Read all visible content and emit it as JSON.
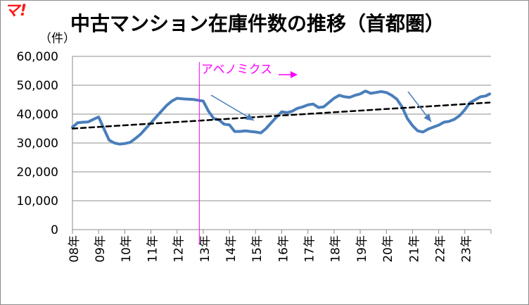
{
  "logo": {
    "text": "マ!",
    "color": "#ff1a1a"
  },
  "chart_data": {
    "type": "line",
    "title": "中古マンション在庫件数の推移（首都圏）",
    "ylabel": "（件）",
    "xlabel": "",
    "ylim": [
      0,
      60000
    ],
    "yticks": [
      "0",
      "10,000",
      "20,000",
      "30,000",
      "40,000",
      "50,000",
      "60,000"
    ],
    "yticks_values": [
      0,
      10000,
      20000,
      30000,
      40000,
      50000,
      60000
    ],
    "xticks": [
      "08年",
      "09年",
      "10年",
      "11年",
      "12年",
      "13年",
      "14年",
      "15年",
      "16年",
      "17年",
      "18年",
      "19年",
      "20年",
      "21年",
      "22年",
      "23年"
    ],
    "grid": true,
    "legend": "none",
    "series": [
      {
        "type": "line",
        "color": "#4a7ebb",
        "x": [
          2008.0,
          2008.2,
          2008.4,
          2008.6,
          2008.8,
          2009.0,
          2009.2,
          2009.4,
          2009.6,
          2009.8,
          2010.0,
          2010.2,
          2010.4,
          2010.6,
          2010.8,
          2011.0,
          2011.2,
          2011.4,
          2011.6,
          2011.8,
          2012.0,
          2012.2,
          2012.4,
          2012.6,
          2012.8,
          2013.0,
          2013.2,
          2013.4,
          2013.6,
          2013.8,
          2014.0,
          2014.2,
          2014.4,
          2014.6,
          2014.8,
          2015.0,
          2015.2,
          2015.4,
          2015.6,
          2015.8,
          2016.0,
          2016.2,
          2016.4,
          2016.6,
          2016.8,
          2017.0,
          2017.2,
          2017.4,
          2017.6,
          2017.8,
          2018.0,
          2018.2,
          2018.4,
          2018.6,
          2018.8,
          2019.0,
          2019.2,
          2019.4,
          2019.6,
          2019.8,
          2020.0,
          2020.2,
          2020.4,
          2020.6,
          2020.8,
          2021.0,
          2021.2,
          2021.4,
          2021.6,
          2021.8,
          2022.0,
          2022.2,
          2022.4,
          2022.6,
          2022.8,
          2023.0,
          2023.2,
          2023.4,
          2023.6,
          2023.8,
          2023.95
        ],
        "values": [
          35500,
          37000,
          37200,
          37300,
          38200,
          39000,
          35000,
          31000,
          30000,
          29600,
          29800,
          30200,
          31500,
          33000,
          35000,
          37000,
          39000,
          41000,
          43000,
          44500,
          45500,
          45300,
          45200,
          45100,
          44800,
          44500,
          41000,
          38500,
          38000,
          36500,
          36300,
          34000,
          34000,
          34200,
          34000,
          33800,
          33500,
          35000,
          37000,
          39000,
          40800,
          40500,
          41000,
          42000,
          42500,
          43200,
          43500,
          42300,
          42500,
          44000,
          45500,
          46500,
          46000,
          45800,
          46500,
          47000,
          48000,
          47200,
          47500,
          47800,
          47500,
          46500,
          45200,
          42500,
          38500,
          36000,
          34200,
          33800,
          34800,
          35500,
          36200,
          37200,
          37500,
          38200,
          39500,
          41500,
          44000,
          45000,
          46000,
          46300,
          47000
        ]
      },
      {
        "type": "trend",
        "color": "#000000",
        "x": [
          2008.0,
          2023.95
        ],
        "values": [
          35000,
          44000
        ]
      }
    ],
    "annotations": [
      {
        "text": "アベノミクス",
        "x": 2012.85,
        "color": "#ff00ff"
      }
    ]
  }
}
